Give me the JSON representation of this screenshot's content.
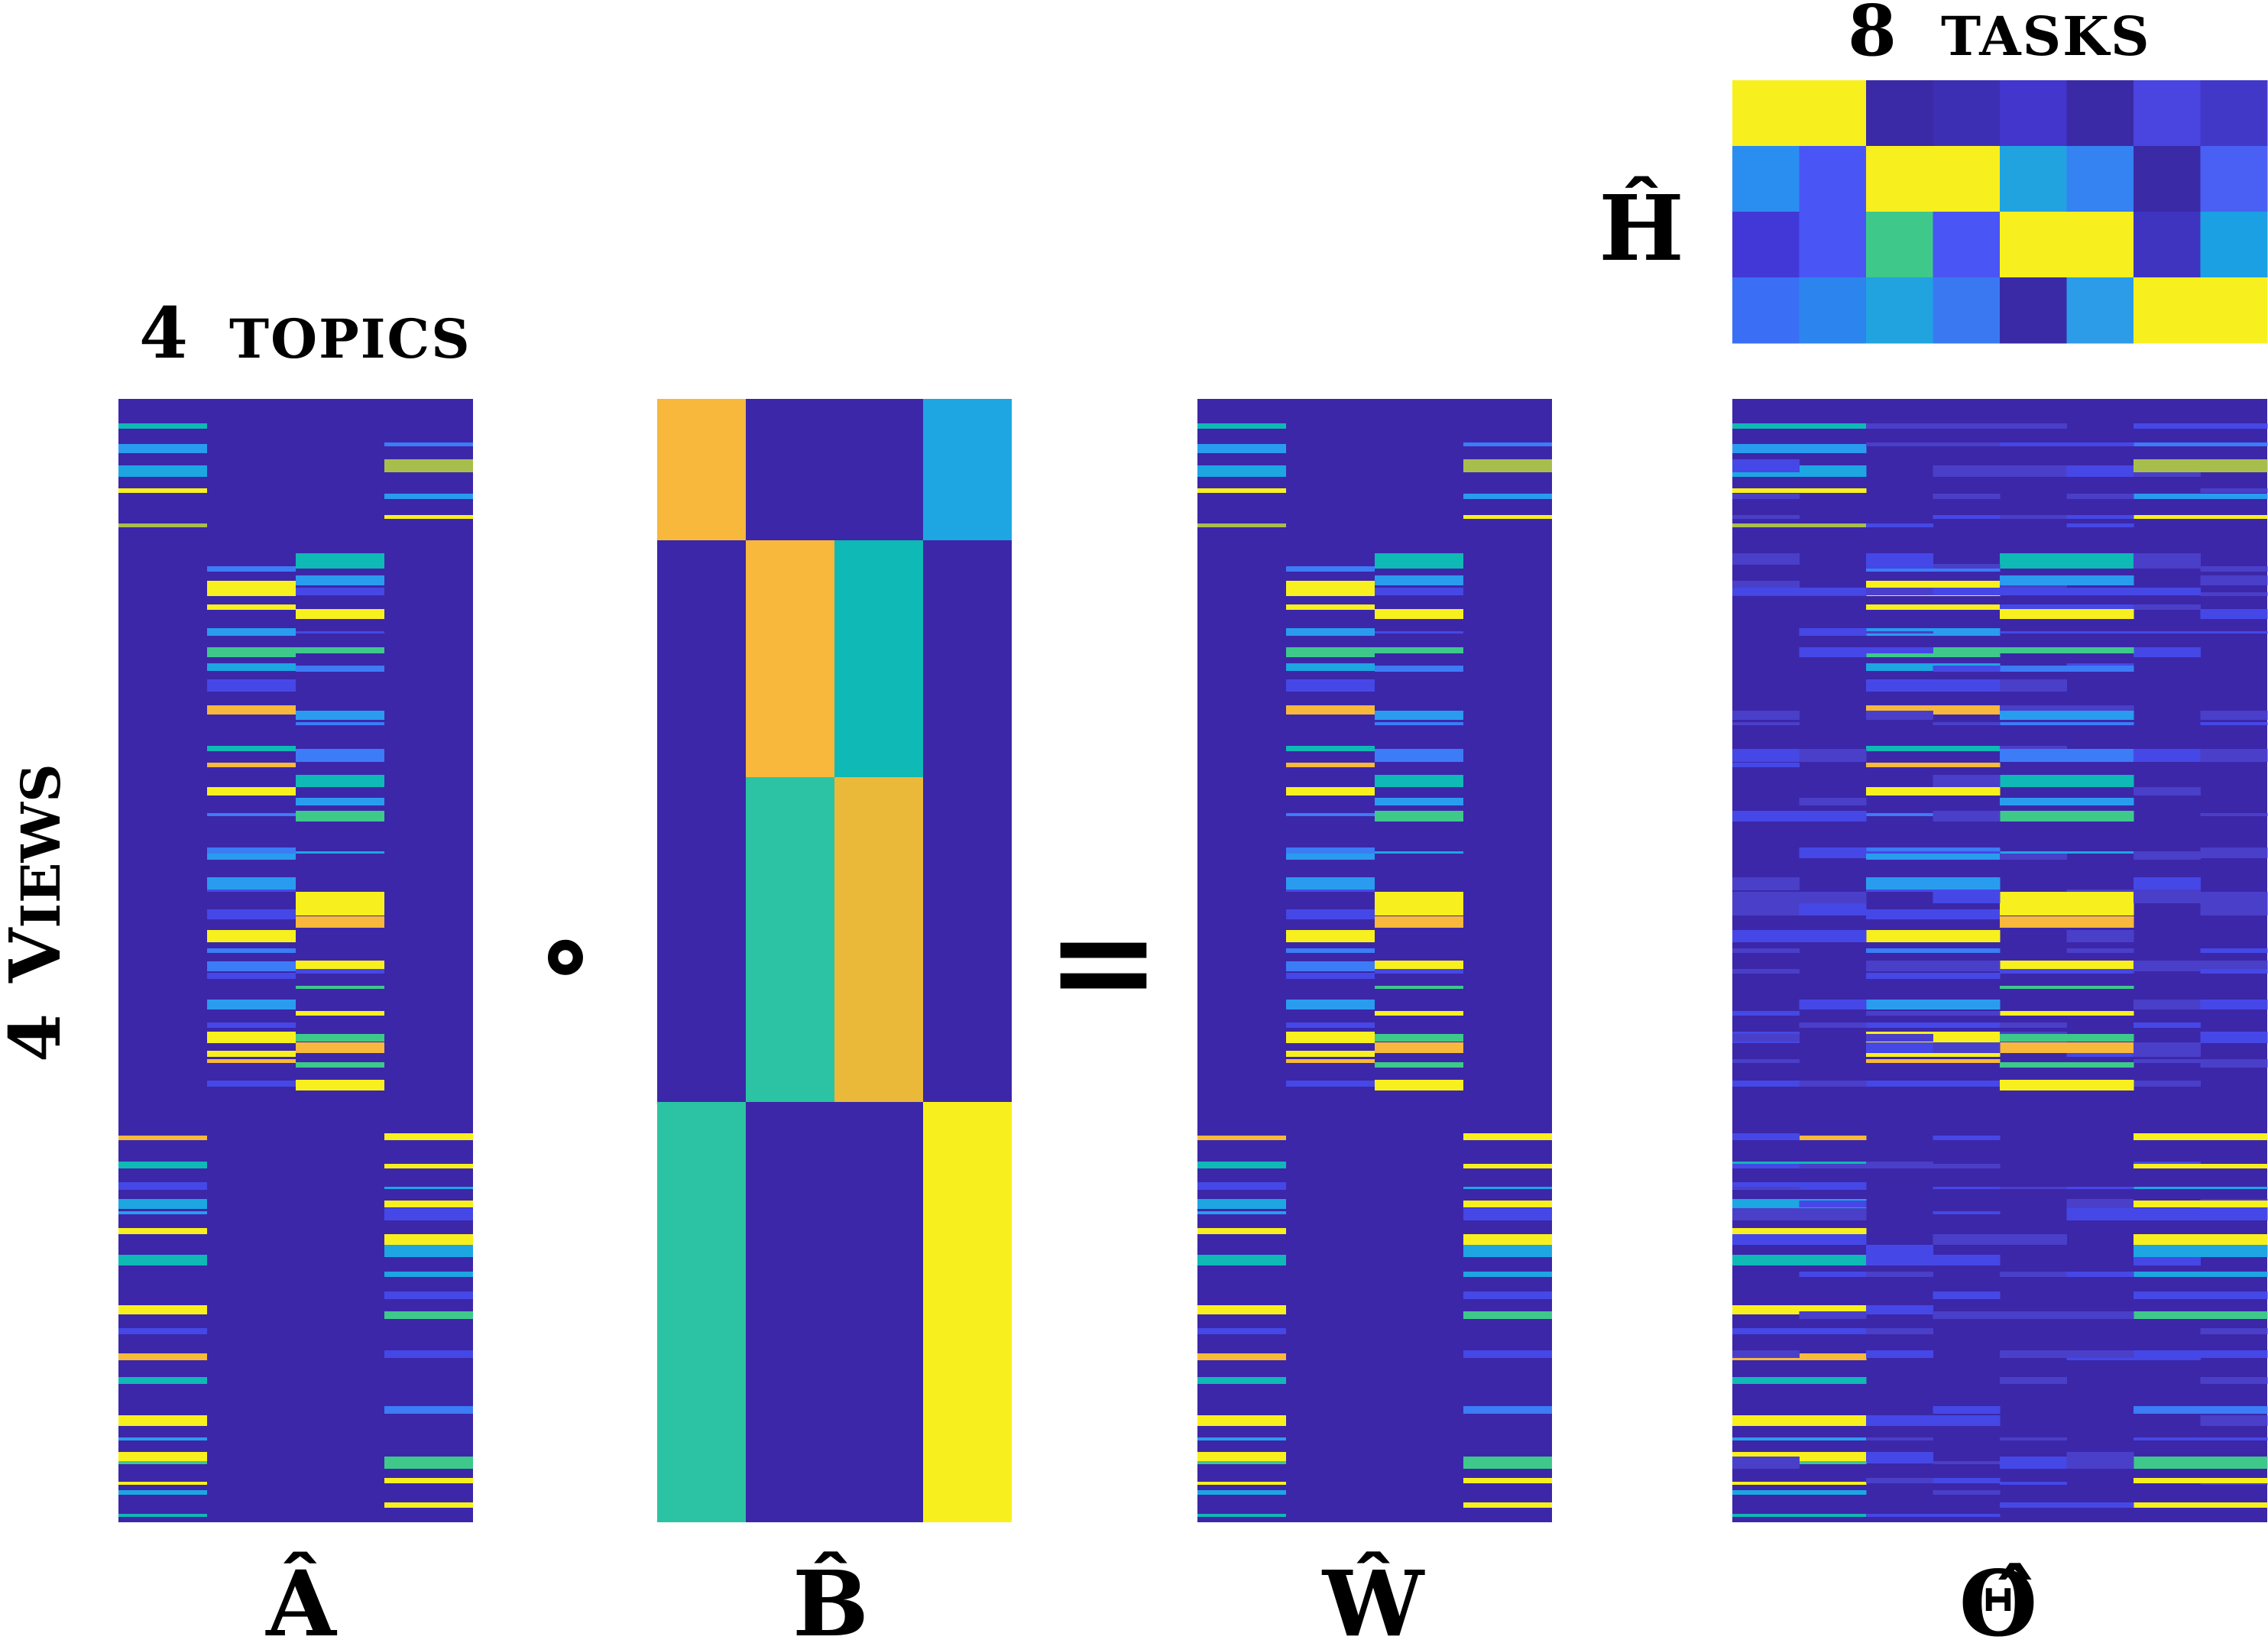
{
  "labels": {
    "topics_num": "4",
    "topics_word": "TOPICS",
    "views_num": "4",
    "views_word": "VIEWS",
    "views_word_cap": "V",
    "views_word_rest": "IEWS",
    "tasks_num": "8",
    "tasks_word": "TASKS",
    "h_label": "Ĥ",
    "a_label": "Â",
    "b_label": "B̂",
    "w_label": "Ŵ",
    "theta_label": "Θ̂",
    "compose_op": "∘",
    "equals_op": "="
  },
  "colors": {
    "background": "#3c27a8",
    "yellow": "#f8f01e",
    "orange": "#f7b83c",
    "amber": "#eab93a",
    "teal": "#2bc3a3",
    "cyan": "#0fb9b5",
    "skyblue": "#1da6e2",
    "blue": "#3c7cf7",
    "indigo": "#4548e6",
    "green": "#3ec98a",
    "olive": "#a8be4c",
    "midblue": "#2a9cef"
  },
  "matrices": {
    "A": {
      "name": "A-hat",
      "cols": 4,
      "rows": 4,
      "views": 4
    },
    "B": {
      "name": "B-hat",
      "cols": 4,
      "blocks": [
        [
          0,
          0,
          "orange"
        ],
        [
          0,
          3,
          "skyblue"
        ],
        [
          1,
          1,
          "orange"
        ],
        [
          1,
          2,
          "cyan"
        ],
        [
          2,
          1,
          "teal"
        ],
        [
          2,
          2,
          "amber"
        ],
        [
          3,
          0,
          "teal"
        ],
        [
          3,
          3,
          "yellow"
        ]
      ]
    },
    "H": {
      "name": "H-hat",
      "rows": 4,
      "cols": 8,
      "cells": [
        [
          "yellow",
          "yellow",
          "#3a2aa6",
          "#3d2fb3",
          "#4336cc",
          "#3a2aa6",
          "#4a45e0",
          "#4238c8"
        ],
        [
          "#2a8ef0",
          "#4a55f5",
          "yellow",
          "yellow",
          "#21a3e0",
          "#3582f2",
          "#3a2aa6",
          "#4a60f5"
        ],
        [
          "#4238d8",
          "#4a55f5",
          "#3ec98a",
          "#4a55f5",
          "yellow",
          "yellow",
          "#3e34c0",
          "#1ca0e4"
        ],
        [
          "#3a6ef5",
          "#2c85ee",
          "#21a3e0",
          "#3a78f2",
          "#3a2aa6",
          "#2c9be8",
          "yellow",
          "yellow"
        ]
      ]
    },
    "W": {
      "name": "W-hat",
      "cols": 4
    },
    "Theta": {
      "name": "Theta-hat",
      "cols": 8
    }
  }
}
